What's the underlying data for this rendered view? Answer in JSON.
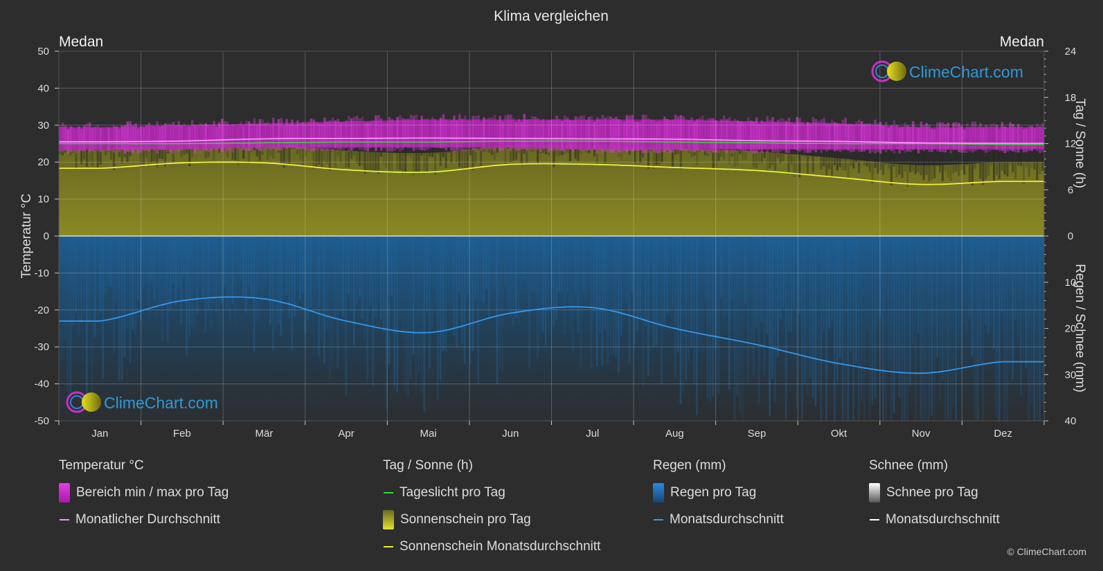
{
  "chart_data": {
    "type": "area",
    "title": "Klima vergleichen",
    "location_left": "Medan",
    "location_right": "Medan",
    "ylabel_left": "Temperatur °C",
    "ylabel_right_top": "Tag / Sonne (h)",
    "ylabel_right_bottom": "Regen / Schnee (mm)",
    "y_left_range": [
      -50,
      50
    ],
    "y_left_ticks": [
      "50",
      "40",
      "30",
      "20",
      "10",
      "0",
      "-10",
      "-20",
      "-30",
      "-40",
      "-50"
    ],
    "y_right_top_range": [
      0,
      24
    ],
    "y_right_top_ticks": [
      "24",
      "18",
      "12",
      "6",
      "0"
    ],
    "y_right_bottom_range": [
      0,
      40
    ],
    "y_right_bottom_ticks": [
      "0",
      "10",
      "20",
      "30",
      "40"
    ],
    "months": [
      "Jan",
      "Feb",
      "Mär",
      "Apr",
      "Mai",
      "Jun",
      "Jul",
      "Aug",
      "Sep",
      "Okt",
      "Nov",
      "Dez"
    ],
    "grid": true,
    "series": {
      "temp_range_min": [
        23.5,
        23.5,
        24.0,
        24.0,
        24.0,
        24.0,
        23.5,
        23.5,
        23.5,
        23.5,
        23.5,
        23.5
      ],
      "temp_range_max": [
        29.5,
        30.0,
        30.5,
        31.0,
        31.5,
        31.5,
        31.5,
        31.5,
        31.0,
        30.5,
        29.5,
        29.5
      ],
      "temp_monthly_avg": [
        25.5,
        25.7,
        26.3,
        26.4,
        26.5,
        26.4,
        26.3,
        26.2,
        25.8,
        25.6,
        25.2,
        25.1
      ],
      "daylight_hours": [
        12.0,
        12.0,
        12.1,
        12.2,
        12.2,
        12.3,
        12.3,
        12.2,
        12.1,
        12.0,
        12.0,
        11.9
      ],
      "sunshine_hours": [
        8.8,
        9.5,
        9.5,
        8.6,
        8.3,
        9.3,
        9.3,
        8.9,
        8.5,
        7.6,
        6.7,
        7.1
      ],
      "rain_monthly_avg_mm": [
        18.4,
        14.0,
        13.6,
        18.4,
        20.9,
        16.7,
        15.5,
        20.0,
        23.5,
        27.6,
        29.7,
        27.2
      ],
      "snow_monthly_avg_mm": [
        0,
        0,
        0,
        0,
        0,
        0,
        0,
        0,
        0,
        0,
        0,
        0
      ]
    },
    "colors": {
      "temp_range": "#d21fd2",
      "temp_avg": "#ff8cff",
      "daylight": "#33dd33",
      "sunshine_fill": "#9c9c28",
      "sunshine_line": "#f0f040",
      "rain_fill": "#1a5a8e",
      "rain_line": "#3399ee",
      "snow_line": "#ffffff"
    }
  },
  "watermark": "ClimeChart.com",
  "legend": {
    "temperature": {
      "title": "Temperatur °C",
      "range": "Bereich min / max pro Tag",
      "avg": "Monatlicher Durchschnitt"
    },
    "sun": {
      "title": "Tag / Sonne (h)",
      "daylight": "Tageslicht pro Tag",
      "sunshine": "Sonnenschein pro Tag",
      "sunshine_avg": "Sonnenschein Monatsdurchschnitt"
    },
    "rain": {
      "title": "Regen (mm)",
      "per_day": "Regen pro Tag",
      "avg": "Monatsdurchschnitt"
    },
    "snow": {
      "title": "Schnee (mm)",
      "per_day": "Schnee pro Tag",
      "avg": "Monatsdurchschnitt"
    }
  },
  "copyright": "© ClimeChart.com"
}
